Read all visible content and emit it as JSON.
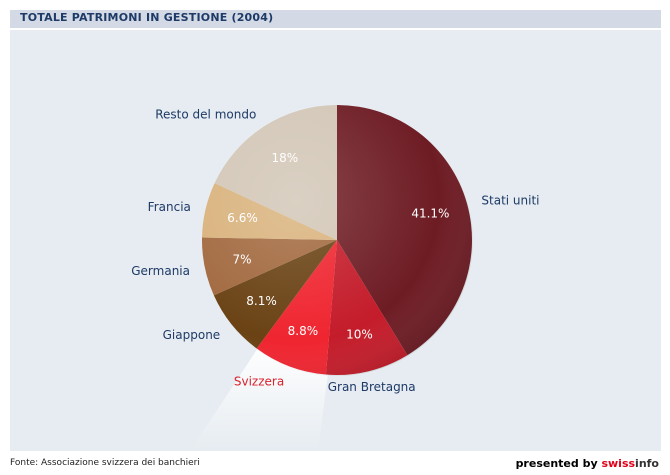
{
  "header": {
    "title": "TOTALE PATRIMONI IN GESTIONE (2004)"
  },
  "footer": {
    "source": "Fonte: Associazione svizzera dei banchieri",
    "presented_by": "presented by ",
    "brand_swiss": "swiss",
    "brand_info": "info"
  },
  "colors": {
    "panel": "#e6ecf1",
    "header_bar": "#d3dae6",
    "label_default": "#1e3a66",
    "label_highlight": "#d9232d",
    "brand": "#e2001a"
  },
  "chart_data": {
    "type": "pie",
    "title": "TOTALE PATRIMONI IN GESTIONE (2004)",
    "unit": "%",
    "highlight": "Svizzera",
    "slices": [
      {
        "label": "Stati uniti",
        "value": 41.1,
        "display": "41.1%",
        "color": "#6e1c24"
      },
      {
        "label": "Gran Bretagna",
        "value": 10,
        "display": "10%",
        "color": "#c41c2a"
      },
      {
        "label": "Svizzera",
        "value": 8.8,
        "display": "8.8%",
        "color": "#ef2530"
      },
      {
        "label": "Giappone",
        "value": 8.1,
        "display": "8.1%",
        "color": "#6a4214"
      },
      {
        "label": "Germania",
        "value": 7,
        "display": "7%",
        "color": "#a2693f"
      },
      {
        "label": "Francia",
        "value": 6.6,
        "display": "6.6%",
        "color": "#d9b27c"
      },
      {
        "label": "Resto del mondo",
        "value": 18,
        "display": "18%",
        "color": "#d2c6b6"
      }
    ]
  }
}
